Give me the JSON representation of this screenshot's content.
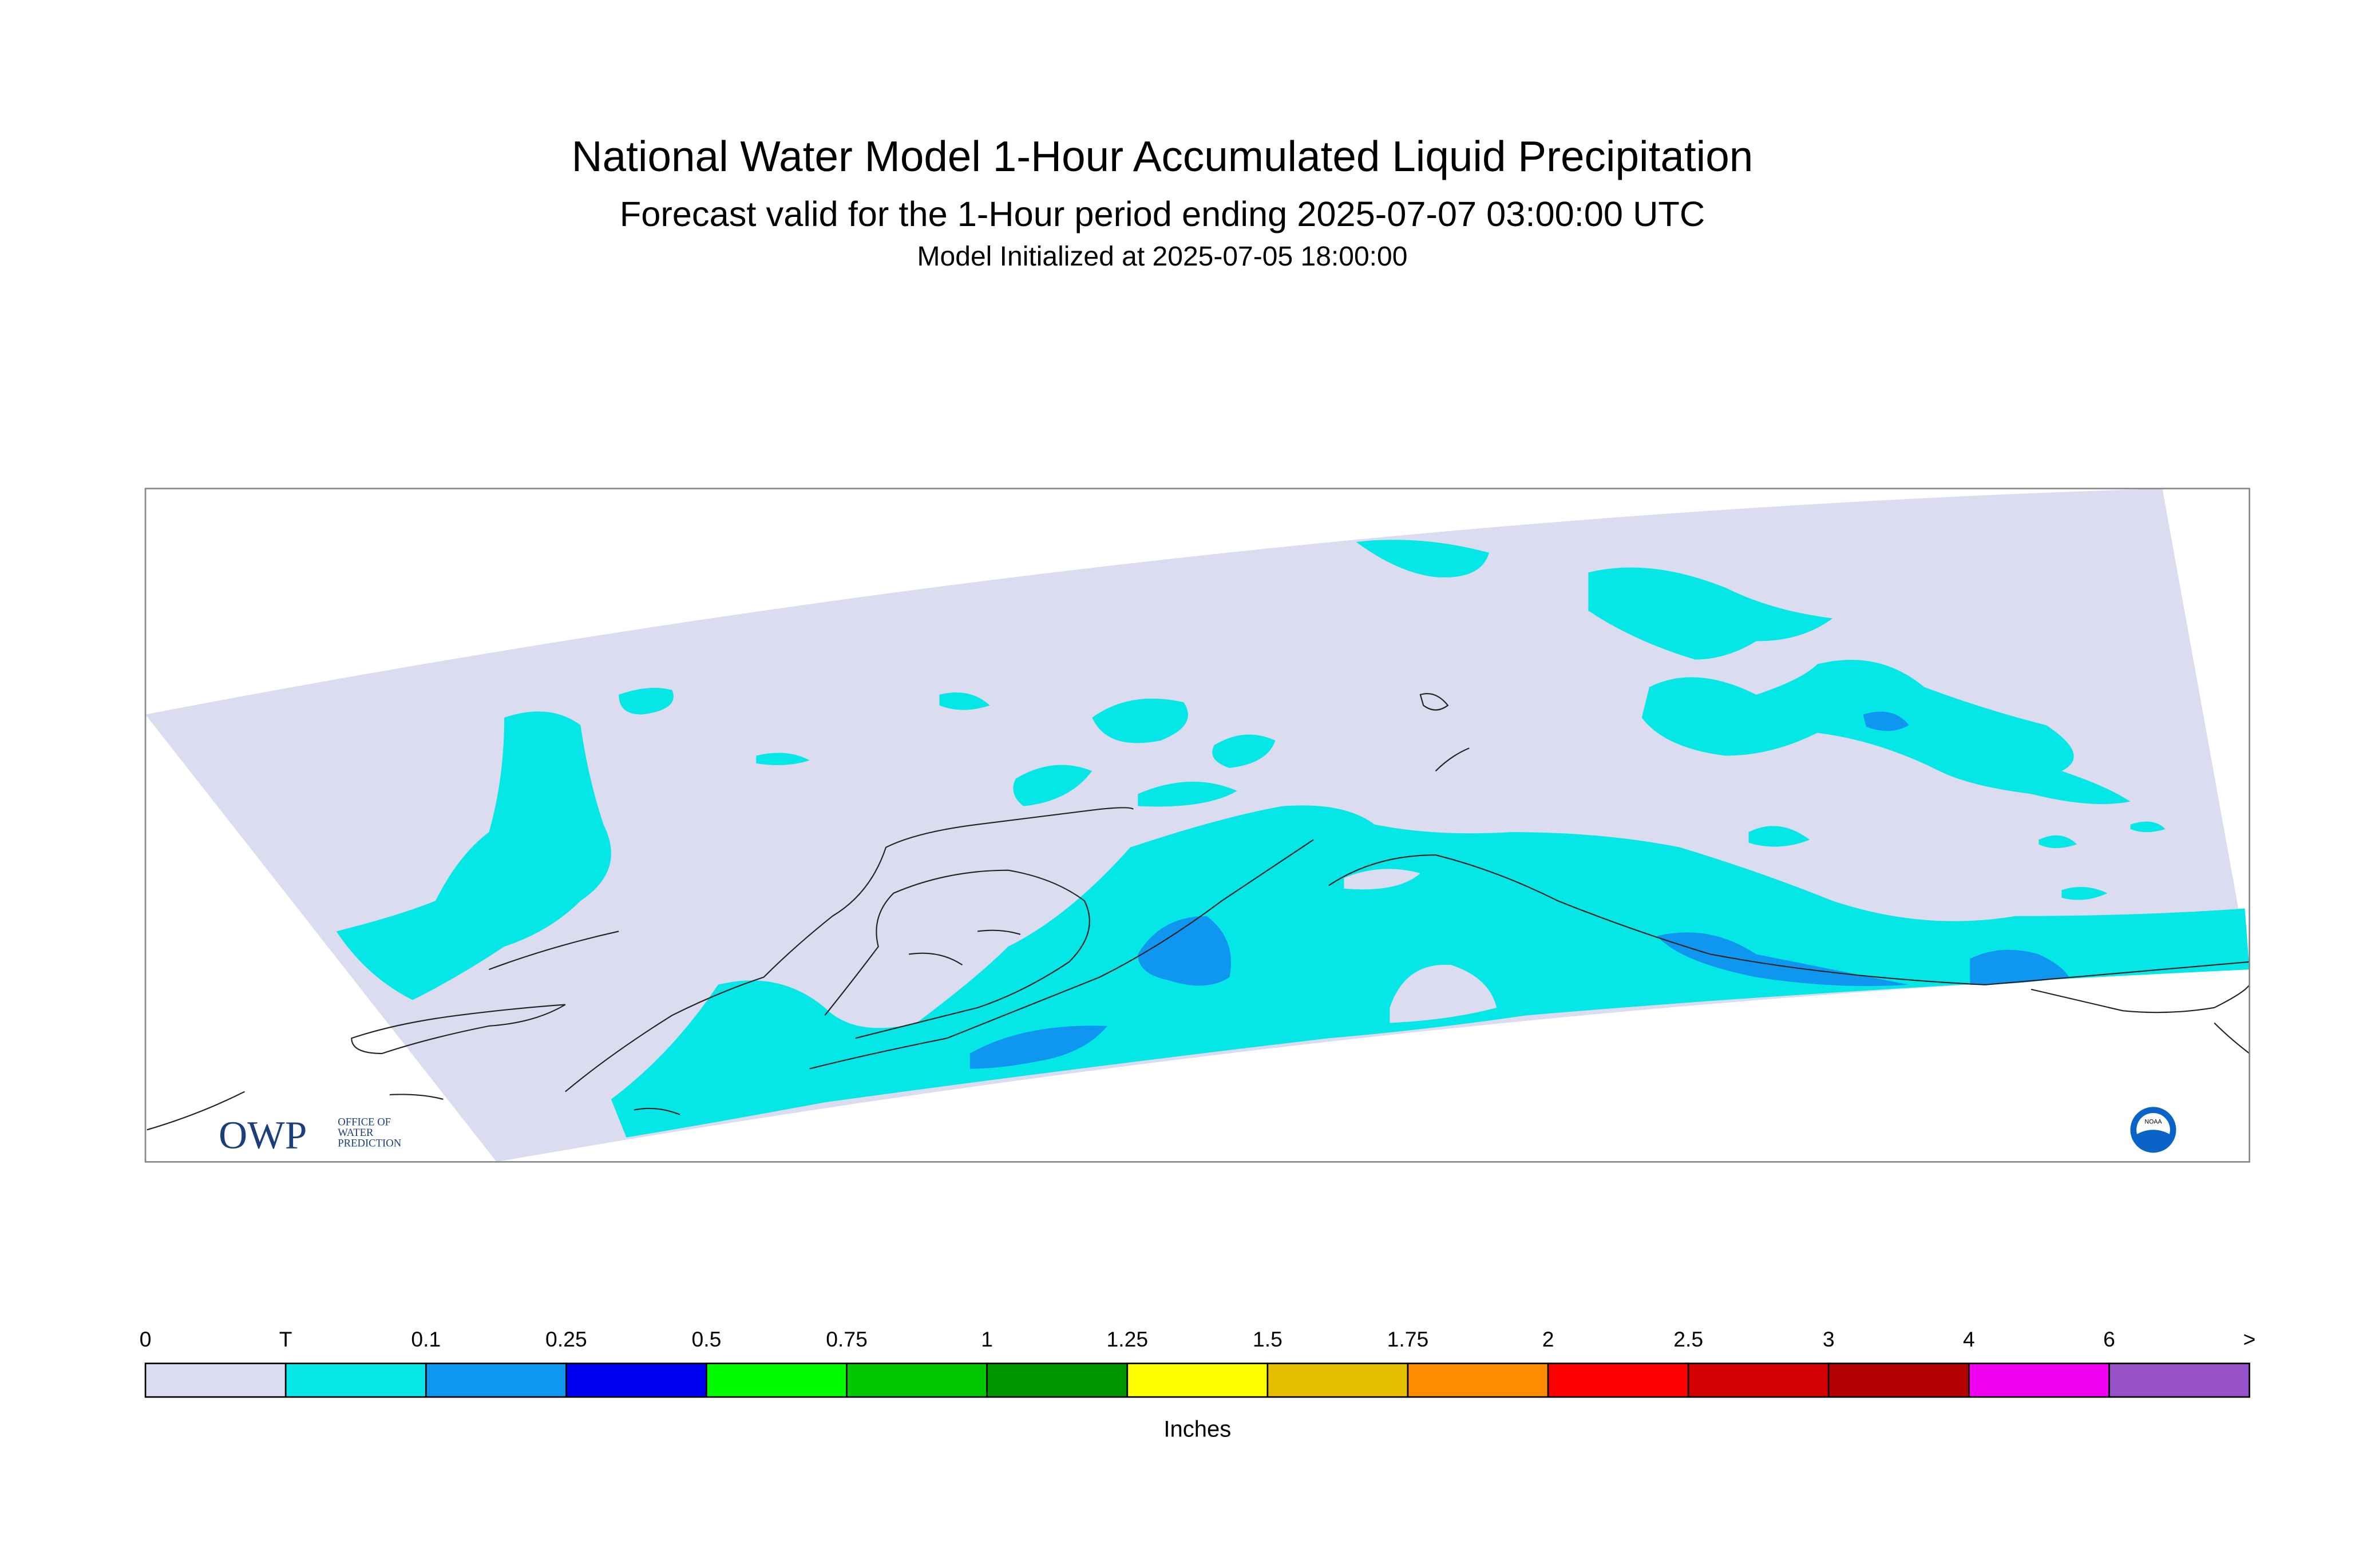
{
  "header": {
    "title": "National Water Model 1-Hour Accumulated Liquid Precipitation",
    "subtitle": "Forecast valid for the 1-Hour period ending 2025-07-07 03:00:00 UTC",
    "initialized": "Model Initialized at 2025-07-05 18:00:00"
  },
  "logos": {
    "owp": "OWP",
    "owp_lines": [
      "OFFICE OF",
      "WATER",
      "PREDICTION"
    ],
    "noaa": "NOAA"
  },
  "legend": {
    "labels": [
      "0",
      "T",
      "0.1",
      "0.25",
      "0.5",
      "0.75",
      "1",
      "1.25",
      "1.5",
      "1.75",
      "2",
      "2.5",
      "3",
      "4",
      "6",
      ">"
    ],
    "colors": [
      "#dcdcf0",
      "#05e6e6",
      "#0f96f0",
      "#0000f0",
      "#00fa00",
      "#00c800",
      "#009600",
      "#ffff00",
      "#e6be00",
      "#ff8c00",
      "#ff0000",
      "#d20000",
      "#b40000",
      "#f000f0",
      "#9650c8"
    ],
    "units": "Inches"
  }
}
